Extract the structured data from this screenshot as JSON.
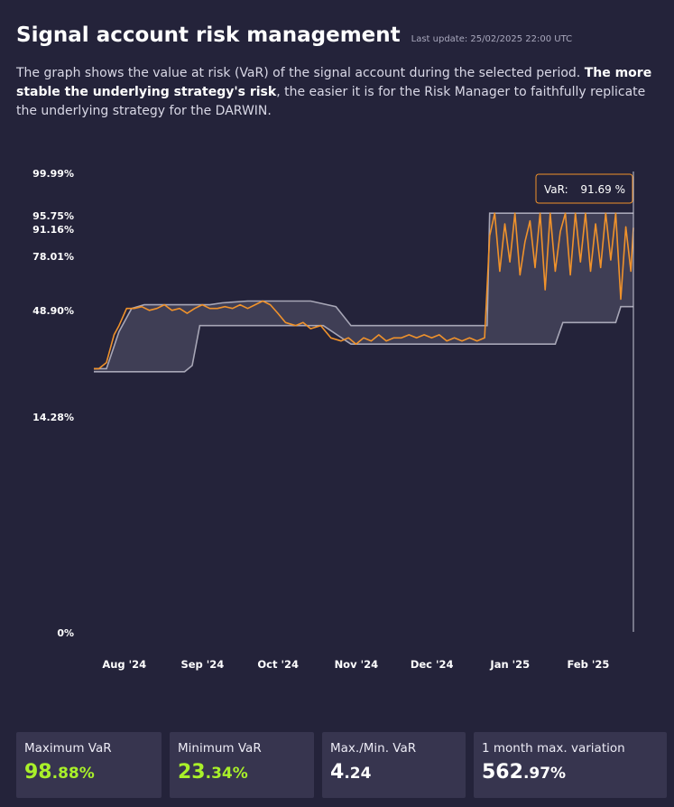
{
  "header": {
    "title": "Signal account risk management",
    "last_update": "Last update: 25/02/2025 22:00 UTC",
    "description_part1": "The graph shows the value at risk (VaR) of the signal account during the selected period. ",
    "description_bold": "The more stable the underlying strategy's risk",
    "description_part2": ", the easier it is for the Risk Manager to faithfully replicate the underlying strategy for the DARWIN."
  },
  "tooltip": {
    "label": "VaR:",
    "value": "91.69 %"
  },
  "stats": [
    {
      "label": "Maximum VaR",
      "int": "98",
      "dec": ".88%",
      "color": "#a9f02a"
    },
    {
      "label": "Minimum VaR",
      "int": "23",
      "dec": ".34%",
      "color": "#a9f02a"
    },
    {
      "label": "Max./Min. VaR",
      "int": "4",
      "dec": ".24",
      "color": "#ffffff"
    },
    {
      "label": "1 month max. variation",
      "int": "562",
      "dec": ".97%",
      "color": "#ffffff"
    }
  ],
  "colors": {
    "var_line": "#f0922b",
    "band_fill": "#3f3e55",
    "band_line": "#a7a6b6",
    "background": "#24233a"
  },
  "chart_data": {
    "type": "line",
    "y_scale": "nonlinear",
    "y_ticks": [
      {
        "value": 0,
        "label": "0%"
      },
      {
        "value": 14.28,
        "label": "14.28%"
      },
      {
        "value": 48.9,
        "label": "48.90%"
      },
      {
        "value": 78.01,
        "label": "78.01%"
      },
      {
        "value": 91.16,
        "label": "91.16%"
      },
      {
        "value": 95.75,
        "label": "95.75%"
      },
      {
        "value": 99.99,
        "label": "99.99%"
      }
    ],
    "x_ticks": [
      {
        "date": "2024-08-01",
        "label": "Aug '24"
      },
      {
        "date": "2024-09-01",
        "label": "Sep '24"
      },
      {
        "date": "2024-10-01",
        "label": "Oct '24"
      },
      {
        "date": "2024-11-01",
        "label": "Nov '24"
      },
      {
        "date": "2024-12-01",
        "label": "Dec '24"
      },
      {
        "date": "2025-01-01",
        "label": "Jan '25"
      },
      {
        "date": "2025-02-01",
        "label": "Feb '25"
      }
    ],
    "x_range": [
      "2024-07-26",
      "2025-02-25"
    ],
    "band_upper": [
      [
        "2024-07-26",
        30
      ],
      [
        "2024-07-31",
        30
      ],
      [
        "2024-08-05",
        42
      ],
      [
        "2024-08-10",
        50
      ],
      [
        "2024-08-15",
        52
      ],
      [
        "2024-08-25",
        52
      ],
      [
        "2024-09-10",
        52
      ],
      [
        "2024-09-15",
        53
      ],
      [
        "2024-09-25",
        54
      ],
      [
        "2024-10-10",
        54
      ],
      [
        "2024-10-20",
        54
      ],
      [
        "2024-10-30",
        51
      ],
      [
        "2024-11-05",
        44
      ],
      [
        "2024-11-15",
        44
      ],
      [
        "2024-12-01",
        44
      ],
      [
        "2024-12-20",
        44
      ],
      [
        "2024-12-29",
        44
      ],
      [
        "2024-12-30",
        96
      ],
      [
        "2025-01-10",
        96
      ],
      [
        "2025-01-25",
        96
      ],
      [
        "2025-02-10",
        96
      ],
      [
        "2025-02-25",
        96
      ]
    ],
    "band_lower": [
      [
        "2024-07-26",
        29
      ],
      [
        "2024-08-05",
        29
      ],
      [
        "2024-08-20",
        29
      ],
      [
        "2024-08-31",
        29
      ],
      [
        "2024-09-03",
        31
      ],
      [
        "2024-09-06",
        44
      ],
      [
        "2024-09-15",
        44
      ],
      [
        "2024-09-25",
        44
      ],
      [
        "2024-10-10",
        44
      ],
      [
        "2024-10-25",
        44
      ],
      [
        "2024-11-05",
        38
      ],
      [
        "2024-11-15",
        38
      ],
      [
        "2024-12-01",
        38
      ],
      [
        "2024-12-15",
        38
      ],
      [
        "2024-12-30",
        38
      ],
      [
        "2025-01-10",
        38
      ],
      [
        "2025-01-25",
        38
      ],
      [
        "2025-01-28",
        45
      ],
      [
        "2025-02-10",
        45
      ],
      [
        "2025-02-18",
        45
      ],
      [
        "2025-02-20",
        51
      ],
      [
        "2025-02-25",
        51
      ]
    ],
    "var_series": [
      [
        "2024-07-26",
        30
      ],
      [
        "2024-07-28",
        30
      ],
      [
        "2024-07-31",
        32
      ],
      [
        "2024-08-03",
        41
      ],
      [
        "2024-08-05",
        44
      ],
      [
        "2024-08-08",
        50
      ],
      [
        "2024-08-11",
        50
      ],
      [
        "2024-08-14",
        51
      ],
      [
        "2024-08-17",
        49
      ],
      [
        "2024-08-20",
        50
      ],
      [
        "2024-08-23",
        52
      ],
      [
        "2024-08-26",
        49
      ],
      [
        "2024-08-29",
        50
      ],
      [
        "2024-09-01",
        48
      ],
      [
        "2024-09-04",
        50
      ],
      [
        "2024-09-07",
        52
      ],
      [
        "2024-09-10",
        50
      ],
      [
        "2024-09-13",
        50
      ],
      [
        "2024-09-16",
        51
      ],
      [
        "2024-09-19",
        50
      ],
      [
        "2024-09-22",
        52
      ],
      [
        "2024-09-25",
        50
      ],
      [
        "2024-09-28",
        52
      ],
      [
        "2024-10-01",
        54
      ],
      [
        "2024-10-04",
        52
      ],
      [
        "2024-10-07",
        48
      ],
      [
        "2024-10-10",
        45
      ],
      [
        "2024-10-14",
        44
      ],
      [
        "2024-10-17",
        45
      ],
      [
        "2024-10-20",
        43
      ],
      [
        "2024-10-24",
        44
      ],
      [
        "2024-10-28",
        40
      ],
      [
        "2024-11-01",
        39
      ],
      [
        "2024-11-04",
        40
      ],
      [
        "2024-11-07",
        38
      ],
      [
        "2024-11-10",
        40
      ],
      [
        "2024-11-13",
        39
      ],
      [
        "2024-11-16",
        41
      ],
      [
        "2024-11-19",
        39
      ],
      [
        "2024-11-22",
        40
      ],
      [
        "2024-11-25",
        40
      ],
      [
        "2024-11-28",
        41
      ],
      [
        "2024-12-01",
        40
      ],
      [
        "2024-12-04",
        41
      ],
      [
        "2024-12-07",
        40
      ],
      [
        "2024-12-10",
        41
      ],
      [
        "2024-12-13",
        39
      ],
      [
        "2024-12-16",
        40
      ],
      [
        "2024-12-19",
        39
      ],
      [
        "2024-12-22",
        40
      ],
      [
        "2024-12-25",
        39
      ],
      [
        "2024-12-28",
        40
      ],
      [
        "2024-12-30",
        88
      ],
      [
        "2025-01-01",
        96
      ],
      [
        "2025-01-03",
        70
      ],
      [
        "2025-01-05",
        93
      ],
      [
        "2025-01-07",
        75
      ],
      [
        "2025-01-09",
        96
      ],
      [
        "2025-01-11",
        68
      ],
      [
        "2025-01-13",
        85
      ],
      [
        "2025-01-15",
        94
      ],
      [
        "2025-01-17",
        72
      ],
      [
        "2025-01-19",
        96
      ],
      [
        "2025-01-21",
        60
      ],
      [
        "2025-01-23",
        96
      ],
      [
        "2025-01-25",
        70
      ],
      [
        "2025-01-27",
        90
      ],
      [
        "2025-01-29",
        96
      ],
      [
        "2025-01-31",
        68
      ],
      [
        "2025-02-02",
        96
      ],
      [
        "2025-02-04",
        75
      ],
      [
        "2025-02-06",
        96
      ],
      [
        "2025-02-08",
        70
      ],
      [
        "2025-02-10",
        93
      ],
      [
        "2025-02-12",
        72
      ],
      [
        "2025-02-14",
        96
      ],
      [
        "2025-02-16",
        76
      ],
      [
        "2025-02-18",
        96
      ],
      [
        "2025-02-20",
        55
      ],
      [
        "2025-02-22",
        92
      ],
      [
        "2025-02-24",
        70
      ],
      [
        "2025-02-25",
        91.69
      ]
    ]
  }
}
